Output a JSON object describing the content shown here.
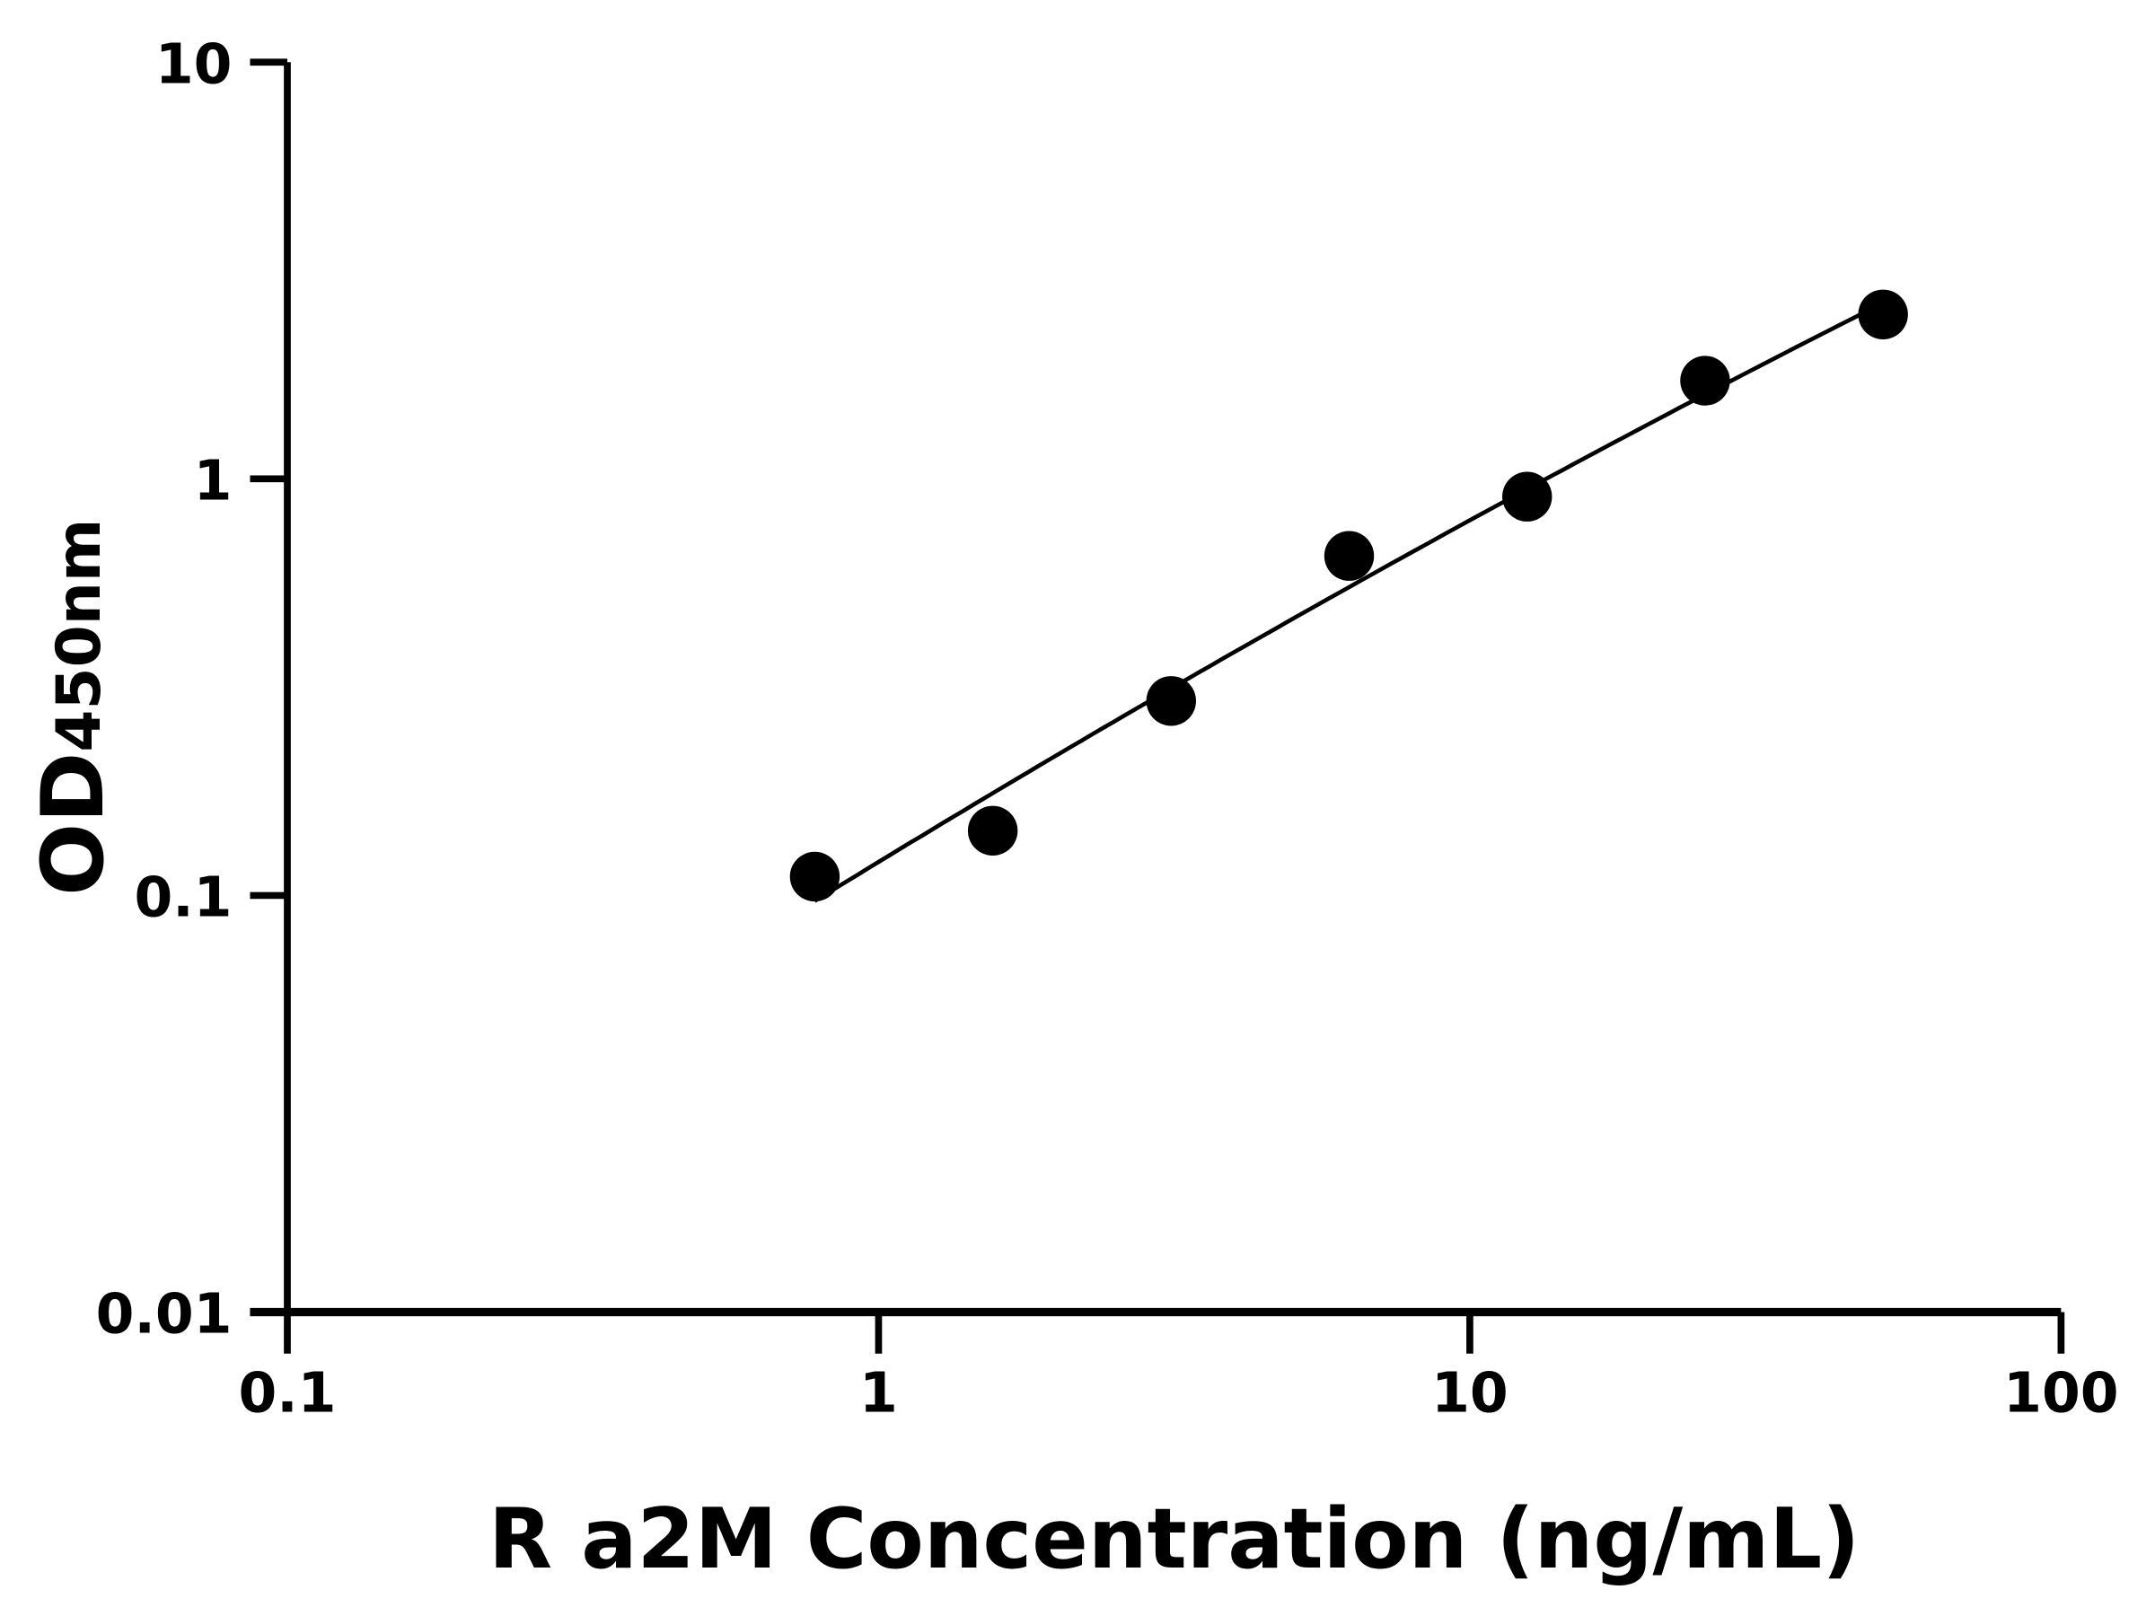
{
  "chart_data": {
    "type": "scatter",
    "title": "",
    "xlabel": "R a2M Concentration (ng/mL)",
    "ylabel_main": "OD",
    "ylabel_sub": "450nm",
    "xscale": "log",
    "yscale": "log",
    "xlim": [
      0.1,
      100
    ],
    "ylim": [
      0.01,
      10
    ],
    "xticks": [
      "0.1",
      "1",
      "10",
      "100"
    ],
    "yticks": [
      "0.01",
      "0.1",
      "1",
      "10"
    ],
    "grid": false,
    "legend": "none",
    "fit_curve": true,
    "marker_color": "#000000",
    "line_color": "#000000",
    "x": [
      0.78,
      1.56,
      3.125,
      6.25,
      12.5,
      25,
      50
    ],
    "y": [
      0.111,
      0.143,
      0.293,
      0.653,
      0.906,
      1.72,
      2.48
    ]
  }
}
